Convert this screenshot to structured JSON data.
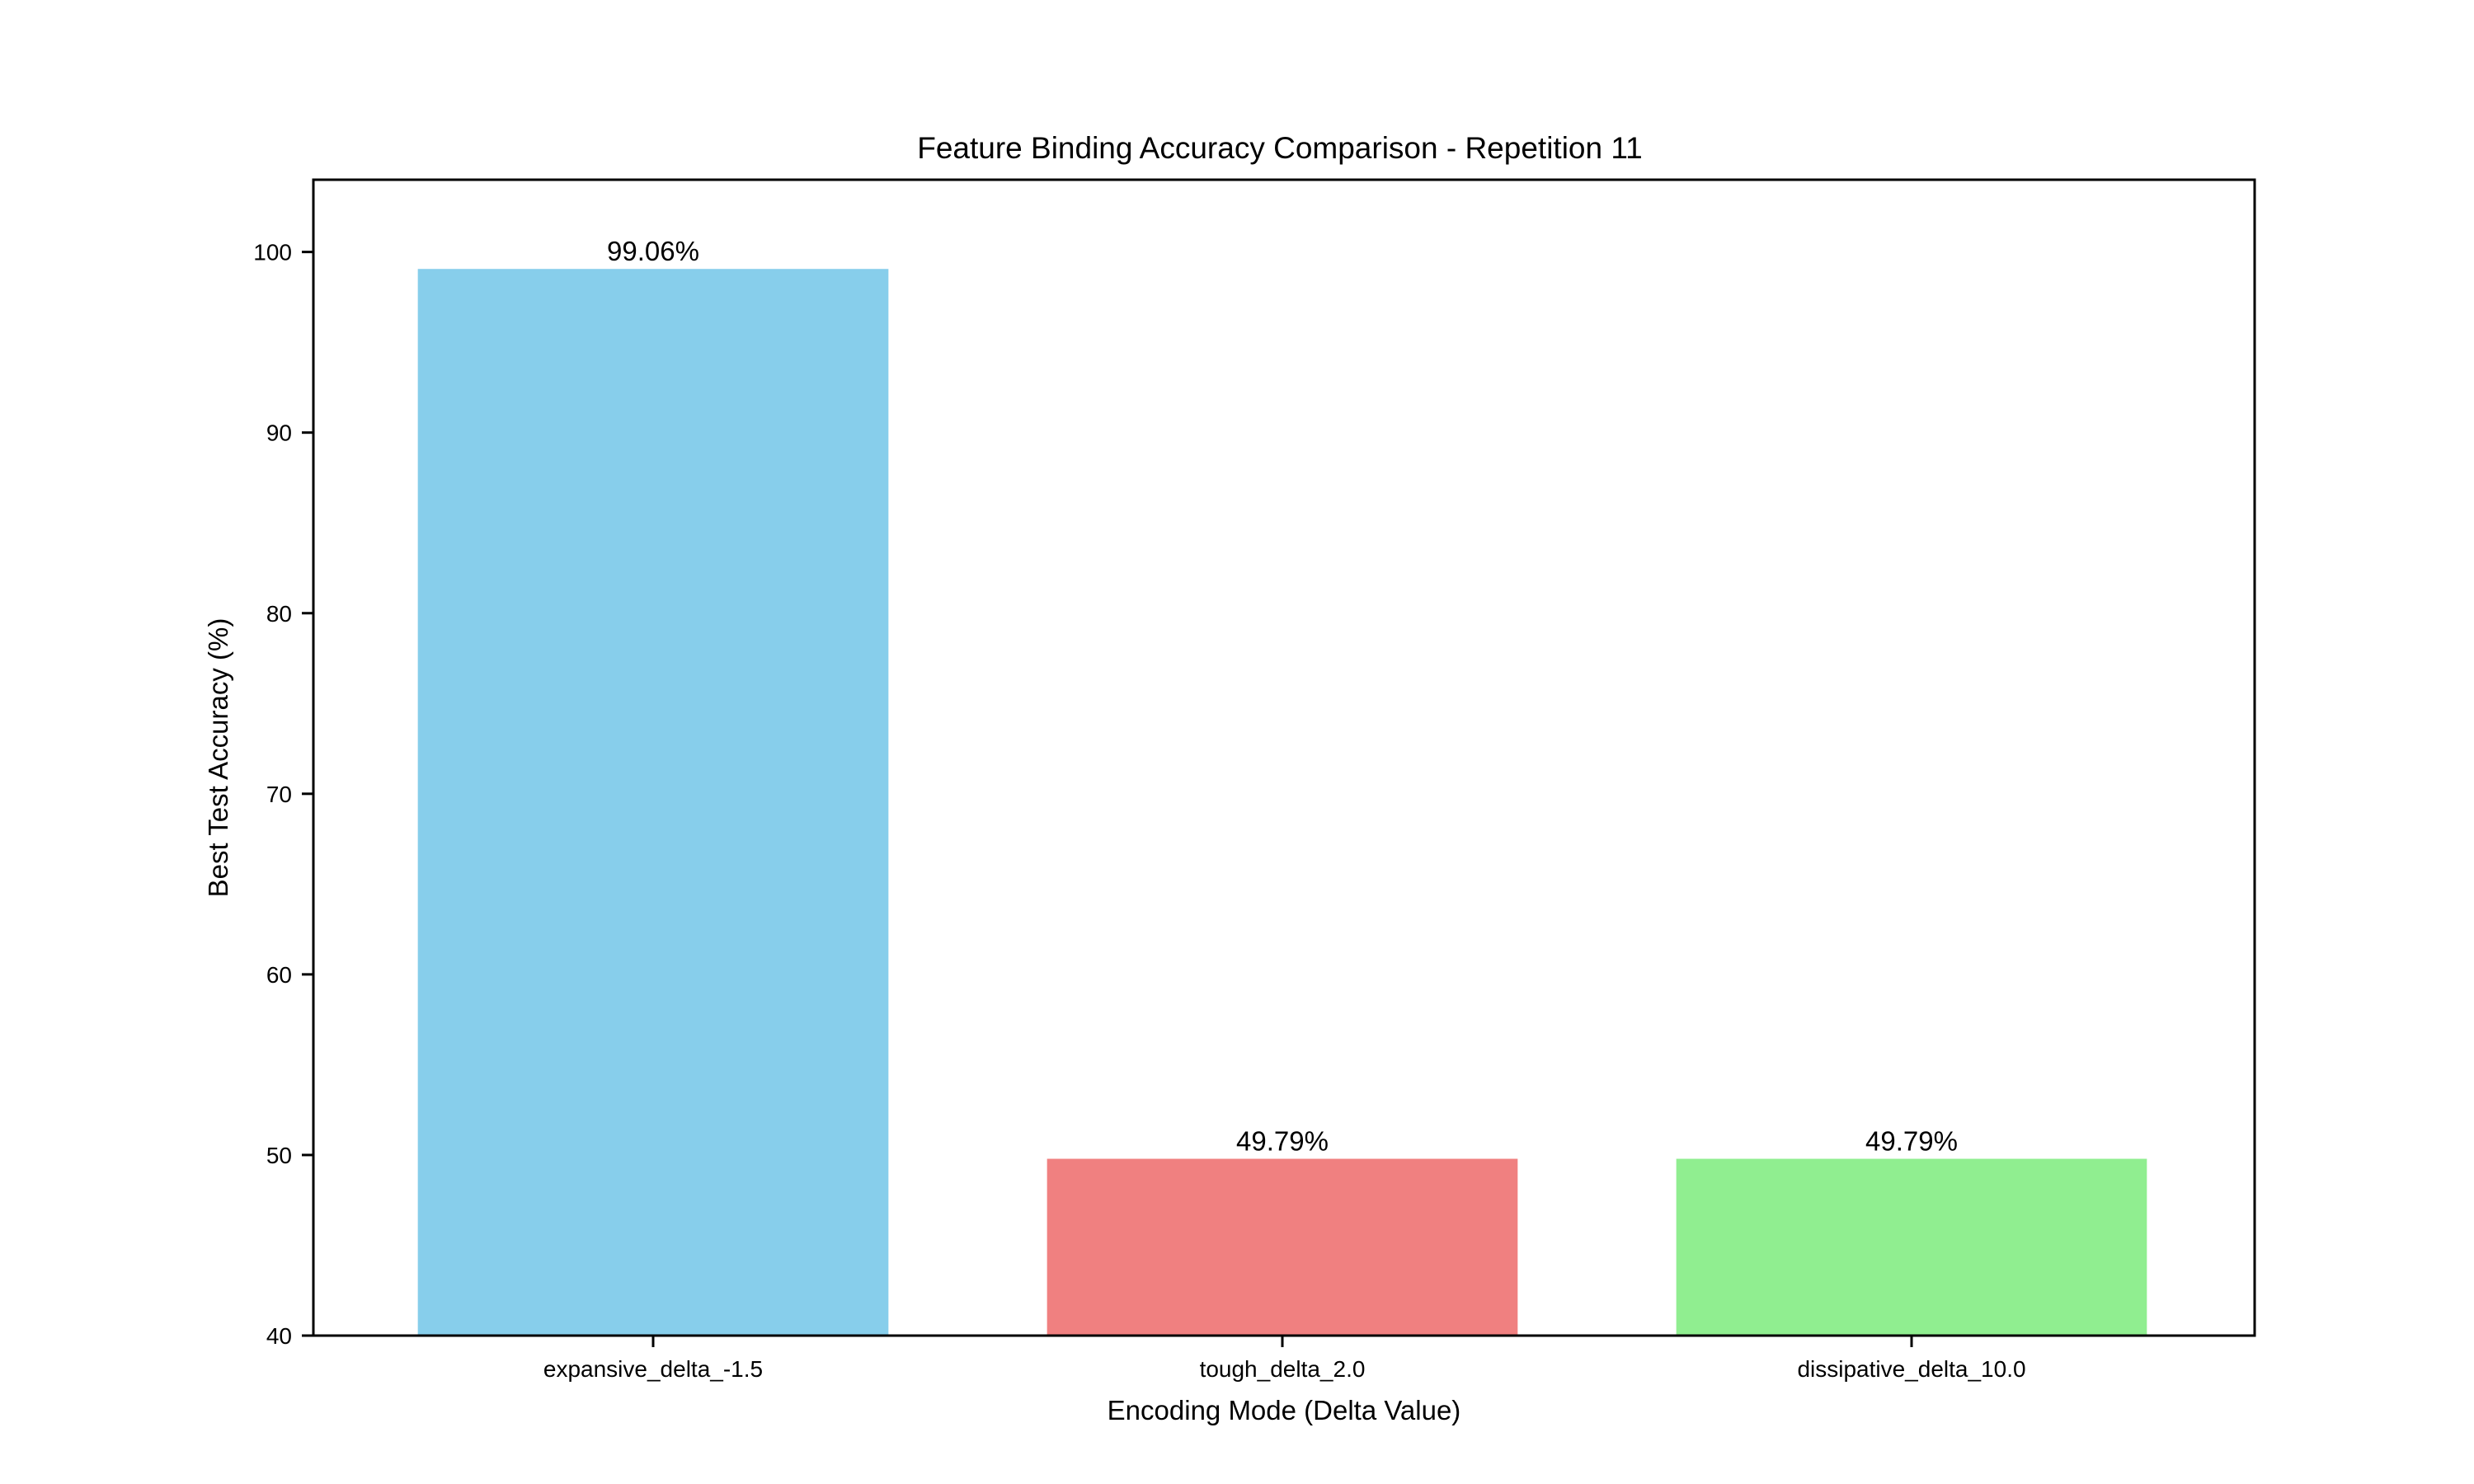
{
  "chart_data": {
    "type": "bar",
    "title": "Feature Binding Accuracy Comparison - Repetition 11",
    "xlabel": "Encoding Mode (Delta Value)",
    "ylabel": "Best Test Accuracy (%)",
    "categories": [
      "expansive_delta_-1.5",
      "tough_delta_2.0",
      "dissipative_delta_10.0"
    ],
    "values": [
      99.06,
      49.79,
      49.79
    ],
    "value_labels": [
      "99.06%",
      "49.79%",
      "49.79%"
    ],
    "colors": [
      "#87ceeb",
      "#f08080",
      "#90ee90"
    ],
    "ylim": [
      40,
      104
    ],
    "yticks": [
      40,
      50,
      60,
      70,
      80,
      90,
      100
    ],
    "ytick_labels": [
      "40",
      "50",
      "60",
      "70",
      "80",
      "90",
      "100"
    ],
    "grid": false,
    "legend": "none"
  }
}
